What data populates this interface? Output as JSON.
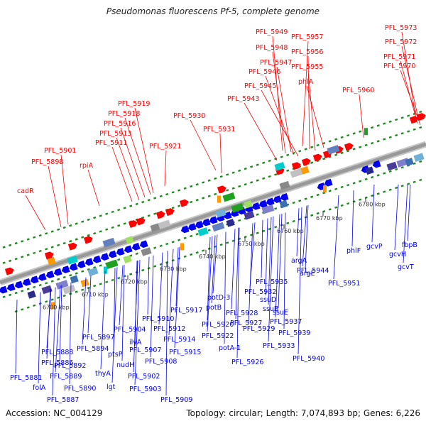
{
  "title": "Pseudomonas fluorescens Pf-5, complete genome",
  "footer": {
    "accession": "Accession: NC_004129",
    "summary": "Topology: circular; Length: 7,074,893 bp; Genes: 6,226"
  },
  "colors": {
    "forward_strand": "#ff0000",
    "reverse_strand": "#0000ee",
    "backbone": "#999999",
    "dots": "#228822"
  },
  "ticks": [
    "6700 kbp",
    "6710 kbp",
    "6720 kbp",
    "6730 kbp",
    "6740 kbp",
    "6750 kbp",
    "6760 kbp",
    "6770 kbp",
    "6780 kbp"
  ],
  "labels_top": [
    "PFL_5949",
    "PFL_5957",
    "PFL_5973",
    "PFL_5948",
    "PFL_5956",
    "PFL_5972",
    "PFL_5947",
    "PFL_5971",
    "PFL_5946",
    "PFL_5955",
    "PFL_5970",
    "PFL_5945",
    "phlA",
    "PFL_5960",
    "PFL_5943",
    "PFL_5919",
    "PFL_5918",
    "PFL_5930",
    "PFL_5916",
    "PFL_5931",
    "PFL_5913",
    "PFL_5911",
    "PFL_5921",
    "PFL_5901",
    "PFL_5898",
    "rpiA",
    "cadR"
  ],
  "labels_bottom": [
    "PFL_5881",
    "folA",
    "PFL_5887",
    "PFL_5886",
    "PFL_5888",
    "PFL_5889",
    "PFL_5890",
    "PFL_5892",
    "PFL_5897",
    "PFL_5894",
    "thyA",
    "lgt",
    "ptsP",
    "nudH",
    "ilvA",
    "PFL_5904",
    "PFL_5902",
    "PFL_5903",
    "PFL_5910",
    "PFL_5907",
    "PFL_5908",
    "PFL_5912",
    "PFL_5914",
    "PFL_5915",
    "PFL_5909",
    "PFL_5917",
    "PFL_5920",
    "potB",
    "potD-3",
    "PFL_5922",
    "potA-1",
    "PFL_5926",
    "PFL_5927",
    "PFL_5928",
    "PFL_5929",
    "PFL_5932",
    "PFL_5935",
    "ssuD",
    "ssuB",
    "ssuE",
    "PFL_5937",
    "PFL_5933",
    "PFL_5939",
    "argA",
    "argE",
    "PFL_5940",
    "PFL_5944",
    "PFL_5951",
    "phlF",
    "gcvP",
    "fbpB",
    "gcvH",
    "gcvT"
  ]
}
